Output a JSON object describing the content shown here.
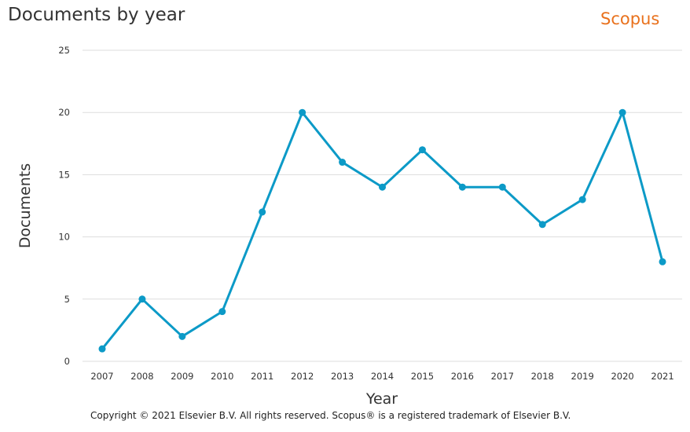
{
  "header": {
    "title": "Documents by year",
    "brand": "Scopus"
  },
  "footer": {
    "copyright": "Copyright © 2021 Elsevier B.V. All rights reserved. Scopus® is a registered trademark of Elsevier B.V."
  },
  "colors": {
    "line": "#0c9ac7",
    "grid": "#dddddd",
    "brand": "#e9711c"
  },
  "chart_data": {
    "type": "line",
    "title": "Documents by year",
    "xlabel": "Year",
    "ylabel": "Documents",
    "ylim": [
      0,
      25
    ],
    "yticks": [
      0,
      5,
      10,
      15,
      20,
      25
    ],
    "grid": true,
    "categories": [
      "2007",
      "2008",
      "2009",
      "2010",
      "2011",
      "2012",
      "2013",
      "2014",
      "2015",
      "2016",
      "2017",
      "2018",
      "2019",
      "2020",
      "2021"
    ],
    "series": [
      {
        "values": [
          1,
          5,
          2,
          4,
          12,
          20,
          16,
          14,
          17,
          14,
          14,
          11,
          13,
          20,
          8
        ]
      }
    ]
  }
}
